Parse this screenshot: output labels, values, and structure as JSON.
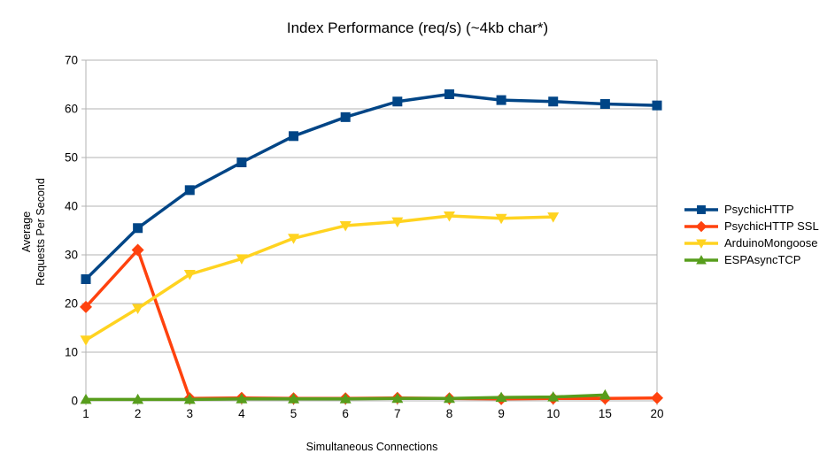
{
  "title": "Index Performance (req/s) (~4kb char*)",
  "chart_data": {
    "type": "line",
    "title": "Index Performance (req/s) (~4kb char*)",
    "xlabel": "Simultaneous Connections",
    "ylabel": "Average Requests Per Second",
    "ylabel_lines": [
      "Average",
      "Requests Per Second"
    ],
    "x_categories": [
      "1",
      "2",
      "3",
      "4",
      "5",
      "6",
      "7",
      "8",
      "9",
      "10",
      "15",
      "20"
    ],
    "y_ticks": [
      0,
      10,
      20,
      30,
      40,
      50,
      60,
      70
    ],
    "ylim": [
      0,
      70
    ],
    "grid": "horizontal",
    "grid_color": "#b3b3b3",
    "legend_position": "right",
    "series": [
      {
        "name": "PsychicHTTP",
        "color": "#004586",
        "marker": "square",
        "values": [
          25,
          35.5,
          43.3,
          49,
          54.4,
          58.3,
          61.5,
          63,
          61.8,
          61.5,
          61,
          60.7
        ]
      },
      {
        "name": "PsychicHTTP SSL",
        "color": "#FF420E",
        "marker": "diamond",
        "values": [
          19.3,
          31,
          0.5,
          0.6,
          0.5,
          0.5,
          0.6,
          0.5,
          0.4,
          0.5,
          0.5,
          0.6
        ]
      },
      {
        "name": "ArduinoMongoose",
        "color": "#FFD320",
        "marker": "triangle-down",
        "values": [
          12.5,
          19,
          26,
          29.2,
          33.4,
          36,
          36.8,
          38,
          37.5,
          37.8,
          null,
          null
        ]
      },
      {
        "name": "ESPAsyncTCP",
        "color": "#579D1C",
        "marker": "triangle-up",
        "values": [
          0.3,
          0.3,
          0.3,
          0.4,
          0.4,
          0.4,
          0.5,
          0.5,
          0.7,
          0.8,
          1.2,
          null
        ]
      }
    ]
  }
}
